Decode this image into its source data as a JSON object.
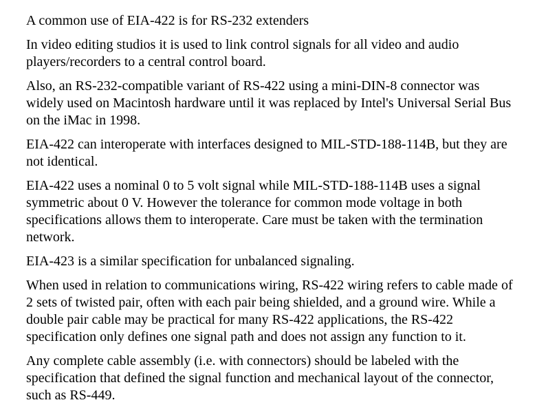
{
  "doc": {
    "font_family": "Times New Roman, serif",
    "font_size_pt": 15,
    "text_color": "#000000",
    "background_color": "#ffffff",
    "paragraphs": [
      "A common use of EIA-422 is for RS-232 extenders",
      "In video editing studios it is used to link control signals for all video and audio players/recorders to a central control board.",
      "Also, an RS-232-compatible variant of RS-422 using a mini-DIN-8 connector was widely used on Macintosh hardware until it was replaced by Intel's Universal Serial Bus on the iMac in 1998.",
      "EIA-422 can interoperate with interfaces designed to MIL-STD-188-114B, but they are not identical.",
      "EIA-422 uses a nominal 0 to 5 volt signal while MIL-STD-188-114B uses a signal symmetric about 0 V. However the tolerance for common mode voltage in both specifications allows them to interoperate. Care must be taken with the termination network.",
      "EIA-423 is a similar specification for unbalanced signaling.",
      "When used in relation to communications wiring, RS-422 wiring refers to cable made of 2 sets of twisted pair, often with each pair being shielded, and a ground wire. While a double pair cable may be practical for many RS-422 applications, the RS-422 specification only defines one signal path and does not assign any function to it.",
      "Any complete cable assembly (i.e. with connectors) should be labeled with the specification that defined the signal function and mechanical layout of the connector, such as RS-449."
    ]
  }
}
